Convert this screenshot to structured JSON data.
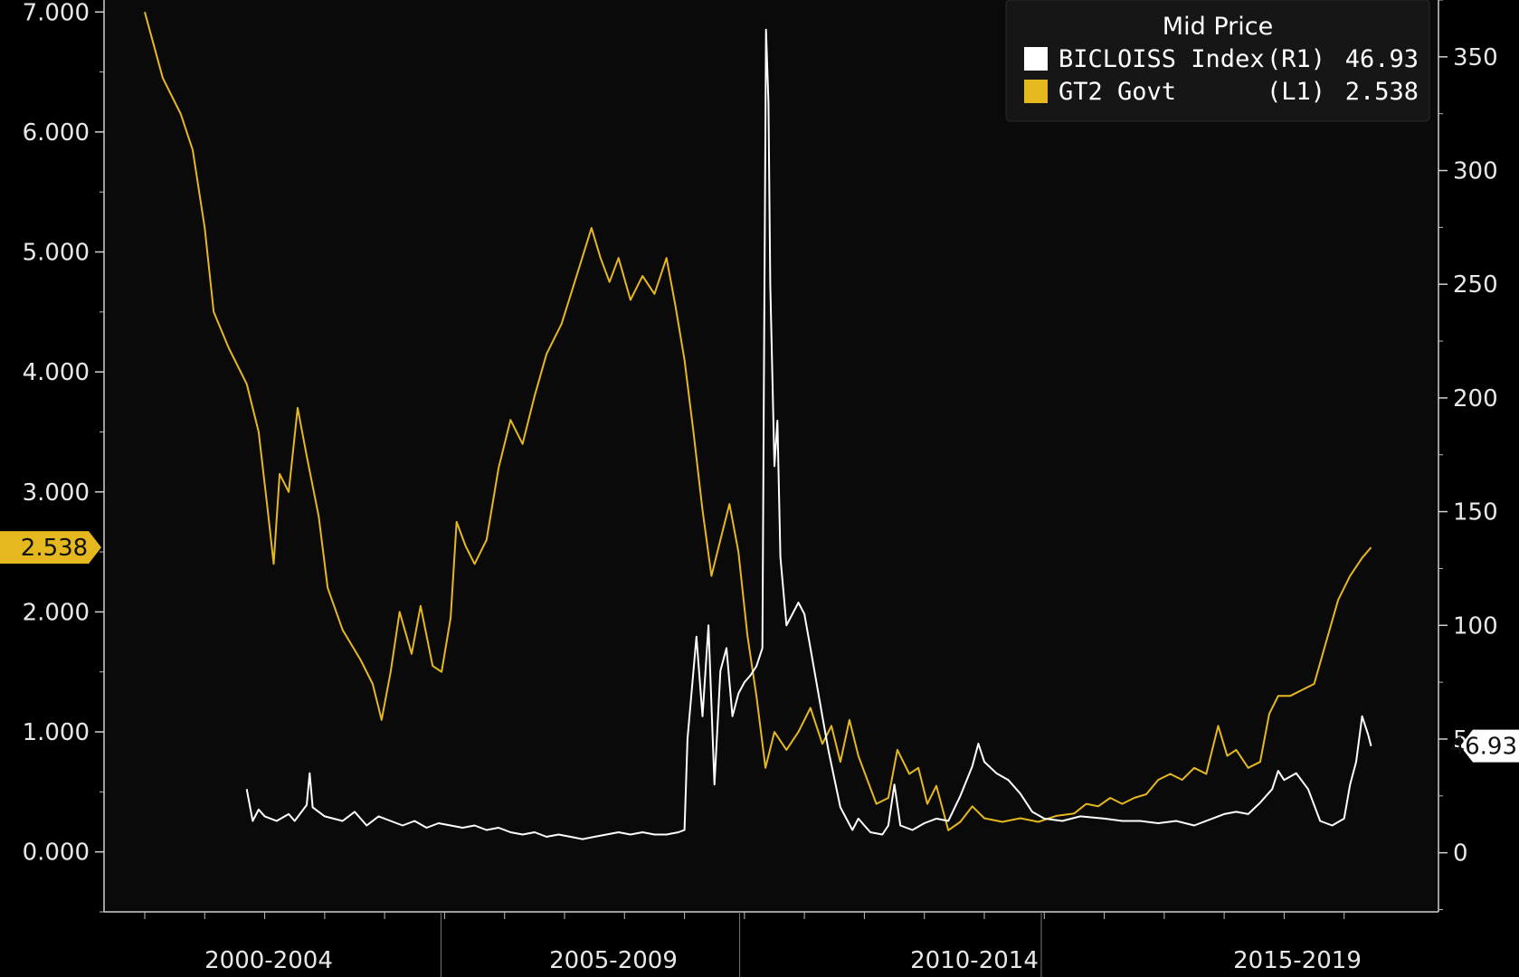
{
  "chart_data": {
    "type": "line",
    "legend": {
      "title": "Mid Price",
      "placement": "top-right",
      "entries": [
        {
          "name": "BICLOISS Index",
          "axis": "(R1)",
          "last": "46.93",
          "color": "#ffffff"
        },
        {
          "name": "GT2 Govt",
          "axis": "(L1)",
          "last": "2.538",
          "color": "#e6b820"
        }
      ]
    },
    "x_labels": [
      "2000-2004",
      "2005-2009",
      "2010-2014",
      "2015-2019"
    ],
    "x_range": [
      1998.0,
      2019.0
    ],
    "left_axis": {
      "range": [
        -0.5,
        7.1
      ],
      "ticks": [
        "0.000",
        "1.000",
        "2.000",
        "3.000",
        "4.000",
        "5.000",
        "6.000",
        "7.000"
      ],
      "last_badge": "2.538"
    },
    "right_axis": {
      "range": [
        -26,
        375
      ],
      "ticks": [
        "0",
        "50",
        "100",
        "150",
        "200",
        "250",
        "300",
        "350"
      ],
      "last_badge": "46.93"
    },
    "series": [
      {
        "name": "GT2 Govt",
        "axis": "left",
        "color": "#e6b820",
        "points": [
          [
            1998.0,
            7.0
          ],
          [
            1998.3,
            6.45
          ],
          [
            1998.6,
            6.15
          ],
          [
            1998.8,
            5.85
          ],
          [
            1999.0,
            5.2
          ],
          [
            1999.15,
            4.5
          ],
          [
            1999.4,
            4.2
          ],
          [
            1999.7,
            3.9
          ],
          [
            1999.9,
            3.5
          ],
          [
            2000.05,
            2.85
          ],
          [
            2000.15,
            2.4
          ],
          [
            2000.25,
            3.15
          ],
          [
            2000.4,
            3.0
          ],
          [
            2000.55,
            3.7
          ],
          [
            2000.7,
            3.3
          ],
          [
            2000.9,
            2.8
          ],
          [
            2001.05,
            2.2
          ],
          [
            2001.3,
            1.85
          ],
          [
            2001.6,
            1.6
          ],
          [
            2001.8,
            1.4
          ],
          [
            2001.95,
            1.1
          ],
          [
            2002.1,
            1.5
          ],
          [
            2002.25,
            2.0
          ],
          [
            2002.45,
            1.65
          ],
          [
            2002.6,
            2.05
          ],
          [
            2002.8,
            1.55
          ],
          [
            2002.95,
            1.5
          ],
          [
            2003.1,
            1.95
          ],
          [
            2003.2,
            2.75
          ],
          [
            2003.35,
            2.55
          ],
          [
            2003.5,
            2.4
          ],
          [
            2003.7,
            2.6
          ],
          [
            2003.9,
            3.2
          ],
          [
            2004.1,
            3.6
          ],
          [
            2004.3,
            3.4
          ],
          [
            2004.5,
            3.8
          ],
          [
            2004.7,
            4.15
          ],
          [
            2004.95,
            4.4
          ],
          [
            2005.2,
            4.8
          ],
          [
            2005.45,
            5.2
          ],
          [
            2005.6,
            4.95
          ],
          [
            2005.75,
            4.75
          ],
          [
            2005.9,
            4.95
          ],
          [
            2006.1,
            4.6
          ],
          [
            2006.3,
            4.8
          ],
          [
            2006.5,
            4.65
          ],
          [
            2006.7,
            4.95
          ],
          [
            2006.85,
            4.55
          ],
          [
            2007.0,
            4.1
          ],
          [
            2007.15,
            3.5
          ],
          [
            2007.3,
            2.85
          ],
          [
            2007.45,
            2.3
          ],
          [
            2007.6,
            2.6
          ],
          [
            2007.75,
            2.9
          ],
          [
            2007.9,
            2.5
          ],
          [
            2008.05,
            1.8
          ],
          [
            2008.2,
            1.3
          ],
          [
            2008.35,
            0.7
          ],
          [
            2008.5,
            1.0
          ],
          [
            2008.7,
            0.85
          ],
          [
            2008.9,
            1.0
          ],
          [
            2009.1,
            1.2
          ],
          [
            2009.3,
            0.9
          ],
          [
            2009.45,
            1.05
          ],
          [
            2009.6,
            0.75
          ],
          [
            2009.75,
            1.1
          ],
          [
            2009.9,
            0.8
          ],
          [
            2010.05,
            0.6
          ],
          [
            2010.2,
            0.4
          ],
          [
            2010.4,
            0.45
          ],
          [
            2010.55,
            0.85
          ],
          [
            2010.75,
            0.65
          ],
          [
            2010.9,
            0.7
          ],
          [
            2011.05,
            0.4
          ],
          [
            2011.2,
            0.55
          ],
          [
            2011.4,
            0.18
          ],
          [
            2011.6,
            0.25
          ],
          [
            2011.8,
            0.38
          ],
          [
            2012.0,
            0.28
          ],
          [
            2012.3,
            0.25
          ],
          [
            2012.6,
            0.28
          ],
          [
            2012.9,
            0.25
          ],
          [
            2013.2,
            0.3
          ],
          [
            2013.5,
            0.32
          ],
          [
            2013.7,
            0.4
          ],
          [
            2013.9,
            0.38
          ],
          [
            2014.1,
            0.45
          ],
          [
            2014.3,
            0.4
          ],
          [
            2014.5,
            0.45
          ],
          [
            2014.7,
            0.48
          ],
          [
            2014.9,
            0.6
          ],
          [
            2015.1,
            0.65
          ],
          [
            2015.3,
            0.6
          ],
          [
            2015.5,
            0.7
          ],
          [
            2015.7,
            0.65
          ],
          [
            2015.9,
            1.05
          ],
          [
            2016.05,
            0.8
          ],
          [
            2016.2,
            0.85
          ],
          [
            2016.4,
            0.7
          ],
          [
            2016.6,
            0.75
          ],
          [
            2016.75,
            1.15
          ],
          [
            2016.9,
            1.3
          ],
          [
            2017.1,
            1.3
          ],
          [
            2017.3,
            1.35
          ],
          [
            2017.5,
            1.4
          ],
          [
            2017.7,
            1.75
          ],
          [
            2017.9,
            2.1
          ],
          [
            2018.1,
            2.3
          ],
          [
            2018.3,
            2.45
          ],
          [
            2018.45,
            2.538
          ]
        ]
      },
      {
        "name": "BICLOISS Index",
        "axis": "right",
        "color": "#ffffff",
        "points": [
          [
            1999.7,
            28
          ],
          [
            1999.8,
            14
          ],
          [
            1999.9,
            19
          ],
          [
            2000.0,
            16
          ],
          [
            2000.2,
            14
          ],
          [
            2000.4,
            17
          ],
          [
            2000.5,
            14
          ],
          [
            2000.7,
            21
          ],
          [
            2000.75,
            35
          ],
          [
            2000.8,
            20
          ],
          [
            2001.0,
            16
          ],
          [
            2001.3,
            14
          ],
          [
            2001.5,
            18
          ],
          [
            2001.7,
            12
          ],
          [
            2001.9,
            16
          ],
          [
            2002.1,
            14
          ],
          [
            2002.3,
            12
          ],
          [
            2002.5,
            14
          ],
          [
            2002.7,
            11
          ],
          [
            2002.9,
            13
          ],
          [
            2003.1,
            12
          ],
          [
            2003.3,
            11
          ],
          [
            2003.5,
            12
          ],
          [
            2003.7,
            10
          ],
          [
            2003.9,
            11
          ],
          [
            2004.1,
            9
          ],
          [
            2004.3,
            8
          ],
          [
            2004.5,
            9
          ],
          [
            2004.7,
            7
          ],
          [
            2004.9,
            8
          ],
          [
            2005.1,
            7
          ],
          [
            2005.3,
            6
          ],
          [
            2005.5,
            7
          ],
          [
            2005.7,
            8
          ],
          [
            2005.9,
            9
          ],
          [
            2006.1,
            8
          ],
          [
            2006.3,
            9
          ],
          [
            2006.5,
            8
          ],
          [
            2006.7,
            8
          ],
          [
            2006.9,
            9
          ],
          [
            2007.0,
            10
          ],
          [
            2007.05,
            50
          ],
          [
            2007.1,
            65
          ],
          [
            2007.2,
            95
          ],
          [
            2007.3,
            60
          ],
          [
            2007.4,
            100
          ],
          [
            2007.5,
            30
          ],
          [
            2007.6,
            80
          ],
          [
            2007.7,
            90
          ],
          [
            2007.8,
            60
          ],
          [
            2007.9,
            70
          ],
          [
            2008.0,
            75
          ],
          [
            2008.1,
            78
          ],
          [
            2008.2,
            82
          ],
          [
            2008.3,
            90
          ],
          [
            2008.33,
            230
          ],
          [
            2008.36,
            362
          ],
          [
            2008.4,
            330
          ],
          [
            2008.43,
            250
          ],
          [
            2008.5,
            170
          ],
          [
            2008.55,
            190
          ],
          [
            2008.6,
            130
          ],
          [
            2008.7,
            100
          ],
          [
            2008.9,
            110
          ],
          [
            2009.0,
            105
          ],
          [
            2009.1,
            90
          ],
          [
            2009.3,
            60
          ],
          [
            2009.4,
            45
          ],
          [
            2009.6,
            20
          ],
          [
            2009.8,
            10
          ],
          [
            2009.9,
            15
          ],
          [
            2010.0,
            12
          ],
          [
            2010.1,
            9
          ],
          [
            2010.3,
            8
          ],
          [
            2010.4,
            12
          ],
          [
            2010.5,
            30
          ],
          [
            2010.6,
            12
          ],
          [
            2010.8,
            10
          ],
          [
            2011.0,
            13
          ],
          [
            2011.2,
            15
          ],
          [
            2011.4,
            14
          ],
          [
            2011.6,
            25
          ],
          [
            2011.8,
            38
          ],
          [
            2011.9,
            48
          ],
          [
            2012.0,
            40
          ],
          [
            2012.2,
            35
          ],
          [
            2012.4,
            32
          ],
          [
            2012.6,
            26
          ],
          [
            2012.8,
            18
          ],
          [
            2013.0,
            15
          ],
          [
            2013.3,
            14
          ],
          [
            2013.6,
            16
          ],
          [
            2014.0,
            15
          ],
          [
            2014.3,
            14
          ],
          [
            2014.6,
            14
          ],
          [
            2014.9,
            13
          ],
          [
            2015.2,
            14
          ],
          [
            2015.5,
            12
          ],
          [
            2015.8,
            15
          ],
          [
            2016.0,
            17
          ],
          [
            2016.2,
            18
          ],
          [
            2016.4,
            17
          ],
          [
            2016.6,
            22
          ],
          [
            2016.8,
            28
          ],
          [
            2016.9,
            36
          ],
          [
            2017.0,
            32
          ],
          [
            2017.2,
            35
          ],
          [
            2017.4,
            28
          ],
          [
            2017.6,
            14
          ],
          [
            2017.8,
            12
          ],
          [
            2018.0,
            15
          ],
          [
            2018.1,
            30
          ],
          [
            2018.2,
            40
          ],
          [
            2018.3,
            60
          ],
          [
            2018.4,
            52
          ],
          [
            2018.45,
            46.93
          ]
        ]
      }
    ]
  }
}
